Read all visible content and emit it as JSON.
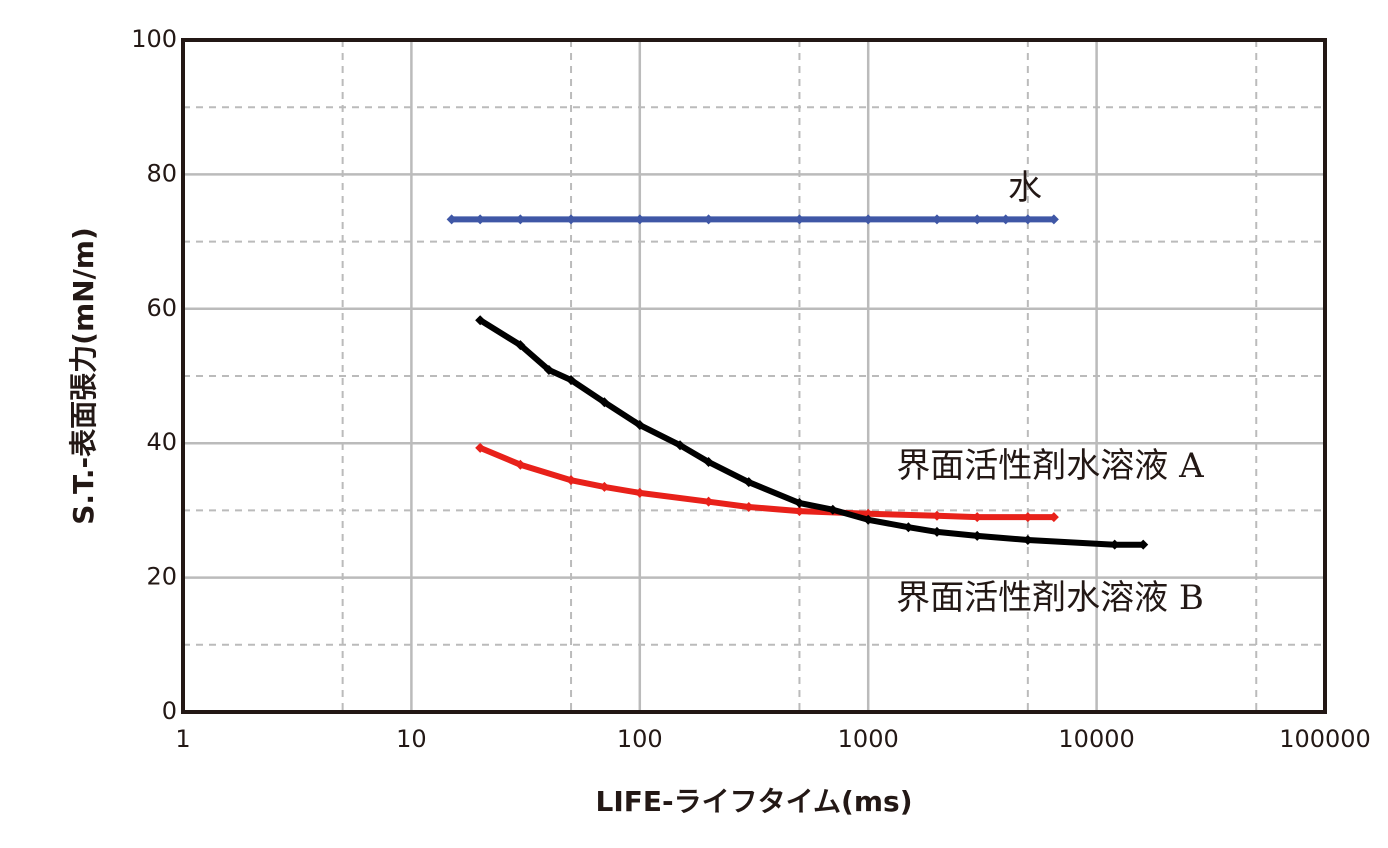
{
  "chart_data": {
    "type": "scatter",
    "x_label": "LIFE-ライフタイム(ms)",
    "y_label": "S.T.-表面張力(mN/m)",
    "xlog": true,
    "xlim": [
      1,
      100000
    ],
    "xticks": [
      1,
      10,
      100,
      1000,
      10000,
      100000
    ],
    "xminor": [
      5,
      50,
      500,
      5000,
      50000
    ],
    "ylim": [
      0,
      100
    ],
    "yticks": [
      0,
      20,
      40,
      60,
      80,
      100
    ],
    "yminor": [
      10,
      30,
      50,
      70,
      90
    ],
    "grid": true,
    "series": [
      {
        "name": "水",
        "color": "#3f57a6",
        "x": [
          15,
          20,
          30,
          50,
          100,
          200,
          500,
          1000,
          2000,
          3000,
          4000,
          5000,
          6500
        ],
        "values": [
          73.3,
          73.3,
          73.3,
          73.3,
          73.3,
          73.3,
          73.3,
          73.3,
          73.3,
          73.3,
          73.3,
          73.3,
          73.3
        ]
      },
      {
        "name": "界面活性剤水溶液 A",
        "color": "#e8211a",
        "x": [
          20,
          30,
          50,
          70,
          100,
          200,
          300,
          500,
          1000,
          2000,
          3000,
          5000,
          6500
        ],
        "values": [
          39.3,
          36.8,
          34.5,
          33.5,
          32.6,
          31.3,
          30.5,
          29.9,
          29.5,
          29.2,
          29.0,
          29.0,
          29.0
        ]
      },
      {
        "name": "界面活性剤水溶液 B",
        "color": "#000000",
        "x": [
          20,
          30,
          40,
          50,
          70,
          100,
          150,
          200,
          300,
          500,
          700,
          1000,
          1500,
          2000,
          3000,
          5000,
          12000,
          16000
        ],
        "values": [
          58.3,
          54.6,
          50.9,
          49.4,
          46.1,
          42.7,
          39.7,
          37.2,
          34.2,
          31.1,
          30.1,
          28.6,
          27.5,
          26.8,
          26.2,
          25.6,
          24.9,
          24.9
        ]
      }
    ]
  }
}
